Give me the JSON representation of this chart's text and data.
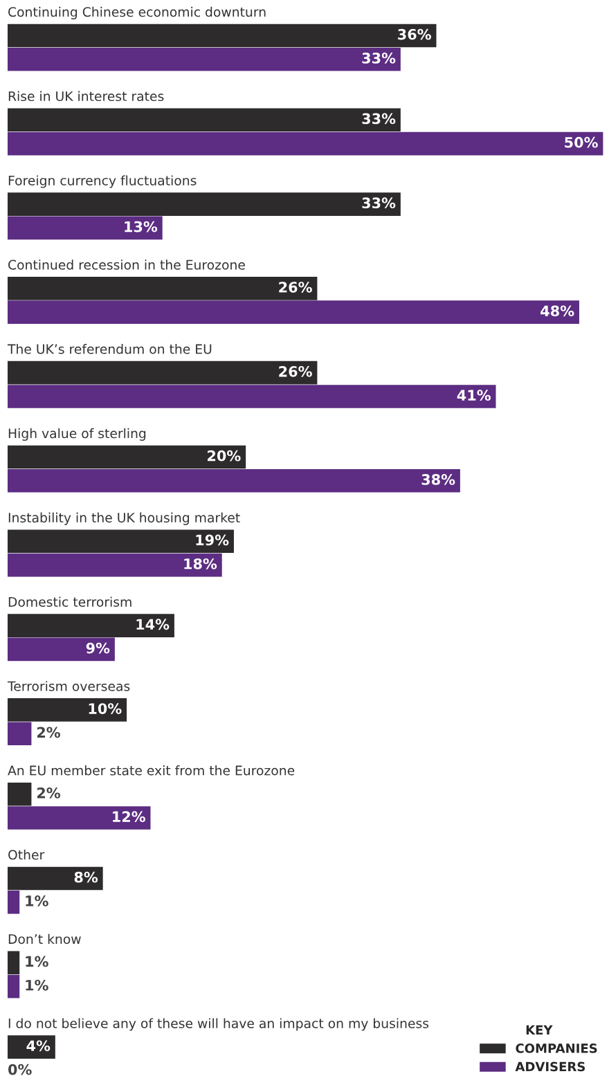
{
  "chart_data": {
    "type": "bar",
    "orientation": "horizontal",
    "categories": [
      "Continuing Chinese economic downturn",
      "Rise in UK interest rates",
      "Foreign currency fluctuations",
      "Continued recession in the Eurozone",
      "The UK’s referendum on the EU",
      "High value of sterling",
      "Instability in the UK housing market",
      "Domestic terrorism",
      "Terrorism overseas",
      "An EU member state exit from the Eurozone",
      "Other",
      "Don’t know",
      "I do not believe any of these will have an impact on my business"
    ],
    "series": [
      {
        "name": "COMPANIES",
        "color": "#2d2b2c",
        "values": [
          36,
          33,
          33,
          26,
          26,
          20,
          19,
          14,
          10,
          2,
          8,
          1,
          4
        ],
        "value_labels": [
          "36%",
          "33%",
          "33%",
          "26%",
          "26%",
          "20%",
          "19%",
          "14%",
          "10%",
          "2%",
          "8%",
          "1%",
          "4%"
        ]
      },
      {
        "name": "ADVISERS",
        "color": "#5c2d82",
        "values": [
          33,
          50,
          13,
          48,
          41,
          38,
          18,
          9,
          2,
          12,
          1,
          1,
          0
        ],
        "value_labels": [
          "33%",
          "50%",
          "13%",
          "48%",
          "41%",
          "38%",
          "18%",
          "9%",
          "2%",
          "12%",
          "1%",
          "1%",
          "0%"
        ]
      }
    ],
    "legend": "bottom right",
    "legend_title": "KEY"
  }
}
